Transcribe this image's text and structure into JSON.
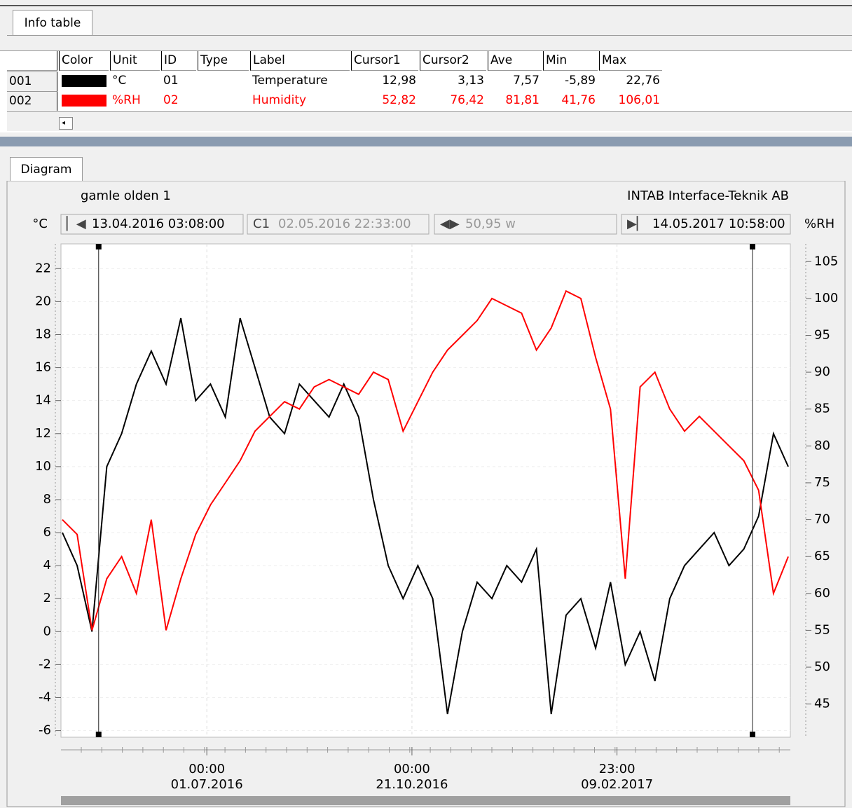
{
  "tabs": {
    "info": "Info table",
    "diagram": "Diagram"
  },
  "table": {
    "columns": [
      "Color",
      "Unit",
      "ID",
      "Type",
      "Label",
      "Cursor1",
      "Cursor2",
      "Ave",
      "Min",
      "Max"
    ],
    "rows": [
      {
        "row": "001",
        "color": "#000000",
        "unit": "°C",
        "id": "01",
        "label": "Temperature",
        "cursor1": "12,98",
        "cursor2": "3,13",
        "ave": "7,57",
        "min": "-5,89",
        "max": "22,76"
      },
      {
        "row": "002",
        "color": "#ff0000",
        "unit": "%RH",
        "id": "02",
        "label": "Humidity",
        "cursor1": "52,82",
        "cursor2": "76,42",
        "ave": "81,81",
        "min": "41,76",
        "max": "106,01"
      }
    ]
  },
  "diagram": {
    "title": "gamle olden 1",
    "company": "INTAB Interface-Teknik AB",
    "y_unit": "°C",
    "y2_unit": "%RH",
    "start": "13.04.2016 03:08:00",
    "cursor1": "02.05.2016 22:33:00",
    "span": "50,95 w",
    "end": "14.05.2017 10:58:00",
    "ylim": [
      -6.4,
      23.5
    ],
    "yticks": [
      -6,
      -4,
      -2,
      0,
      2,
      4,
      6,
      8,
      10,
      12,
      14,
      16,
      18,
      20,
      22
    ],
    "y2lim": [
      40.5,
      107.4
    ],
    "y2ticks": [
      45,
      50,
      55,
      60,
      65,
      70,
      75,
      80,
      85,
      90,
      95,
      100,
      105
    ],
    "xticks": [
      {
        "time": "00:00",
        "date": "01.07.2016"
      },
      {
        "time": "00:00",
        "date": "21.10.2016"
      },
      {
        "time": "23:00",
        "date": "09.02.2017"
      }
    ],
    "series": [
      {
        "color": "#000000",
        "values": [
          6,
          4,
          0,
          10,
          12,
          15,
          17,
          15,
          19,
          14,
          15,
          13,
          19,
          16,
          13,
          12,
          15,
          14,
          13,
          15,
          13,
          8,
          4,
          2,
          4,
          2,
          -5,
          0,
          3,
          2,
          4,
          3,
          5,
          -5,
          1,
          2,
          -1,
          3,
          -2,
          0,
          -3,
          2,
          4,
          5,
          6,
          4,
          5,
          7,
          12,
          10
        ]
      },
      {
        "color": "#ff0000",
        "axis": "y2",
        "values": [
          70,
          68,
          55,
          62,
          65,
          60,
          70,
          55,
          62,
          68,
          72,
          75,
          78,
          82,
          84,
          86,
          85,
          88,
          89,
          88,
          87,
          90,
          89,
          82,
          86,
          90,
          93,
          95,
          97,
          100,
          99,
          98,
          93,
          96,
          101,
          100,
          92,
          85,
          62,
          88,
          90,
          85,
          82,
          84,
          82,
          80,
          78,
          74,
          60,
          65
        ]
      }
    ]
  }
}
